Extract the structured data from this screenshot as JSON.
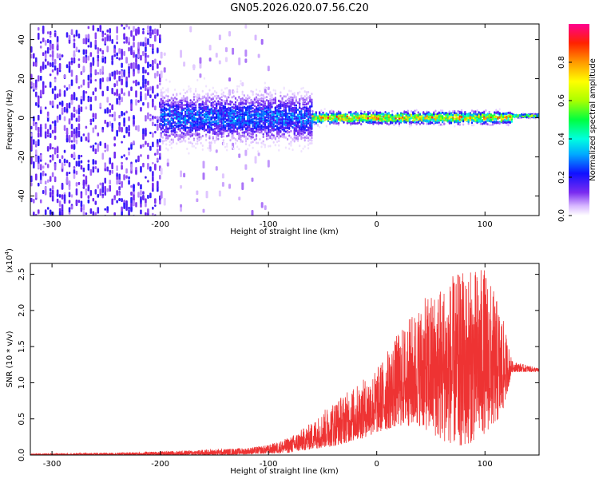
{
  "title": "GN05.2026.020.07.56.C20",
  "chart_data": [
    {
      "type": "heatmap",
      "title": "GN05.2026.020.07.56.C20",
      "xlabel": "Height of straight line (km)",
      "ylabel": "Frequency (Hz)",
      "xlim": [
        -320,
        150
      ],
      "ylim": [
        -50,
        48
      ],
      "xticks": [
        -300,
        -200,
        -100,
        0,
        100
      ],
      "yticks": [
        -40,
        -20,
        0,
        20,
        40
      ],
      "colorbar": {
        "label": "Normalized spectral amplitude",
        "range": [
          0.0,
          1.0
        ],
        "ticks": [
          0.0,
          0.2,
          0.4,
          0.6,
          0.8
        ],
        "tick_labels": [
          "0.0",
          "0.2",
          "0.4",
          "0.6",
          "0.8"
        ]
      },
      "regions": [
        {
          "x_range": [
            -320,
            -200
          ],
          "description": "broadband noise",
          "amplitude": 0.1
        },
        {
          "x_range": [
            -200,
            -60
          ],
          "center_frequency": 0,
          "spread_hz": 12,
          "amplitude": 0.3
        },
        {
          "x_range": [
            -60,
            125
          ],
          "center_frequency": 0,
          "spread_hz": 3,
          "amplitude": 0.8
        },
        {
          "x_range": [
            125,
            150
          ],
          "center_frequency": 1,
          "spread_hz": 1,
          "amplitude": 0.6
        }
      ]
    },
    {
      "type": "line",
      "xlabel": "Height of straight line (km)",
      "ylabel": "SNR (10 * v/v)",
      "scale_label": "(x10",
      "scale_exp": "4",
      "scale_close": ")",
      "xlim": [
        -320,
        150
      ],
      "ylim": [
        0,
        2.65
      ],
      "xticks": [
        -300,
        -200,
        -100,
        0,
        100
      ],
      "yticks": [
        0.0,
        0.5,
        1.0,
        1.5,
        2.0,
        2.5
      ],
      "ytick_labels": [
        "0.0",
        "0.5",
        "1.0",
        "1.5",
        "2.0",
        "2.5"
      ],
      "color": "#ee3333",
      "series": [
        {
          "name": "SNR envelope",
          "x": [
            -320,
            -250,
            -200,
            -150,
            -120,
            -100,
            -80,
            -60,
            -40,
            -20,
            0,
            20,
            40,
            60,
            80,
            100,
            115,
            125,
            150
          ],
          "max": [
            0.02,
            0.03,
            0.05,
            0.08,
            0.1,
            0.14,
            0.25,
            0.45,
            0.75,
            0.95,
            1.2,
            1.7,
            2.1,
            2.4,
            2.55,
            2.6,
            2.0,
            1.3,
            1.2
          ],
          "min": [
            0.0,
            0.0,
            0.0,
            0.0,
            0.01,
            0.02,
            0.03,
            0.08,
            0.12,
            0.2,
            0.3,
            0.4,
            0.4,
            0.2,
            0.1,
            0.3,
            0.5,
            1.15,
            1.15
          ]
        }
      ]
    }
  ]
}
